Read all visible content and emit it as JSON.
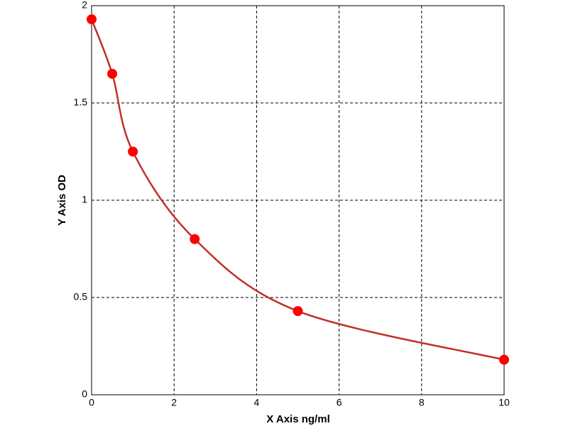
{
  "chart_data": {
    "type": "scatter",
    "x_label": "X Axis ng/ml",
    "y_label": "Y Axis OD",
    "x": [
      0,
      0.5,
      1,
      2.5,
      5,
      10
    ],
    "series": [
      {
        "values": [
          1.93,
          1.65,
          1.25,
          0.8,
          0.43,
          0.18
        ],
        "color": "#ff0000",
        "line_color": "#c0302a",
        "smooth_line": true
      }
    ],
    "xlim": [
      0,
      10
    ],
    "xticks": [
      0,
      2,
      4,
      6,
      8,
      10
    ],
    "ylim": [
      0,
      2
    ],
    "yticks": [
      0,
      0.5,
      1,
      1.5,
      2
    ],
    "grid": true
  }
}
